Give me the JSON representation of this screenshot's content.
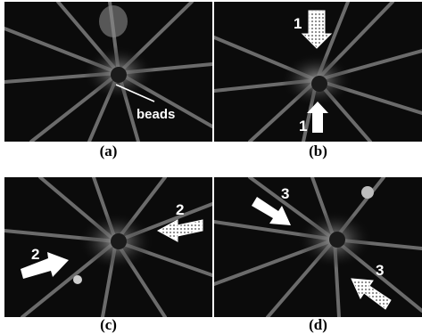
{
  "panels": [
    {
      "id": "a",
      "caption": "(a)",
      "annotation": "beads"
    },
    {
      "id": "b",
      "caption": "(b)",
      "arrow_label_1": "1",
      "arrow_label_2": "1"
    },
    {
      "id": "c",
      "caption": "(c)",
      "arrow_label_1": "2",
      "arrow_label_2": "2"
    },
    {
      "id": "d",
      "caption": "(d)",
      "arrow_label_1": "3",
      "arrow_label_2": "3"
    }
  ],
  "colors": {
    "background": "#0b0b0b",
    "filament": "#bfbfbf",
    "arrow": "#ffffff",
    "caption": "#000000"
  }
}
